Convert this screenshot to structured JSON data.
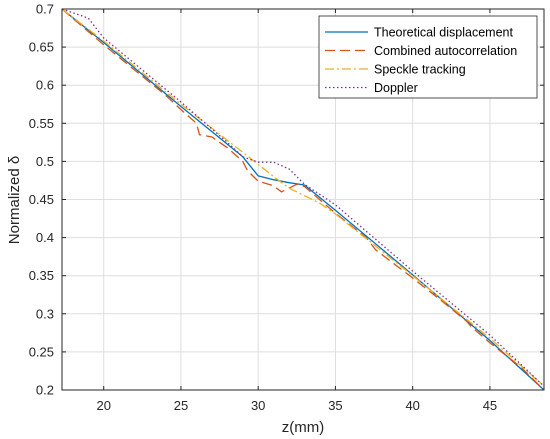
{
  "chart_data": {
    "type": "line",
    "title": "",
    "xlabel": "z(mm)",
    "ylabel": "Normalized δ",
    "xlim": [
      17.3,
      48.5
    ],
    "ylim": [
      0.2,
      0.7
    ],
    "xticks": [
      "20",
      "25",
      "30",
      "35",
      "40",
      "45"
    ],
    "yticks": [
      "0.2",
      "0.25",
      "0.3",
      "0.35",
      "0.4",
      "0.45",
      "0.5",
      "0.55",
      "0.6",
      "0.65",
      "0.7"
    ],
    "grid": true,
    "legend_position": "top-right",
    "series": [
      {
        "name": "Theoretical displacement",
        "color": "#0072BD",
        "style": "solid",
        "points": [
          [
            17.3,
            0.7
          ],
          [
            20,
            0.656
          ],
          [
            25,
            0.572
          ],
          [
            29,
            0.506
          ],
          [
            30,
            0.481
          ],
          [
            31,
            0.476
          ],
          [
            32,
            0.472
          ],
          [
            33,
            0.469
          ],
          [
            35,
            0.436
          ],
          [
            40,
            0.351
          ],
          [
            45,
            0.265
          ],
          [
            48.5,
            0.2
          ]
        ]
      },
      {
        "name": "Combined autocorrelation",
        "color": "#D95319",
        "style": "dashed",
        "points": [
          [
            17.3,
            0.7
          ],
          [
            20,
            0.653
          ],
          [
            22,
            0.62
          ],
          [
            24,
            0.587
          ],
          [
            25,
            0.568
          ],
          [
            26,
            0.55
          ],
          [
            26.2,
            0.535
          ],
          [
            27,
            0.532
          ],
          [
            28,
            0.518
          ],
          [
            29,
            0.5
          ],
          [
            29.3,
            0.488
          ],
          [
            30,
            0.474
          ],
          [
            31,
            0.468
          ],
          [
            31.5,
            0.46
          ],
          [
            32,
            0.465
          ],
          [
            32.5,
            0.47
          ],
          [
            33,
            0.467
          ],
          [
            35,
            0.432
          ],
          [
            37,
            0.4
          ],
          [
            37.6,
            0.384
          ],
          [
            40,
            0.347
          ],
          [
            42,
            0.315
          ],
          [
            43.5,
            0.29
          ],
          [
            43.8,
            0.283
          ],
          [
            45,
            0.262
          ],
          [
            47,
            0.23
          ],
          [
            48.5,
            0.2
          ]
        ]
      },
      {
        "name": "Speckle tracking",
        "color": "#EDB120",
        "style": "dashdot",
        "points": [
          [
            17.3,
            0.7
          ],
          [
            20,
            0.658
          ],
          [
            25,
            0.575
          ],
          [
            29,
            0.512
          ],
          [
            30,
            0.496
          ],
          [
            31,
            0.48
          ],
          [
            32,
            0.465
          ],
          [
            33,
            0.455
          ],
          [
            34,
            0.445
          ],
          [
            35,
            0.431
          ],
          [
            40,
            0.35
          ],
          [
            45,
            0.268
          ],
          [
            48.5,
            0.205
          ]
        ]
      },
      {
        "name": "Doppler",
        "color": "#7E2F8E",
        "style": "dotted",
        "points": [
          [
            17.3,
            0.7
          ],
          [
            19,
            0.688
          ],
          [
            20,
            0.662
          ],
          [
            25,
            0.578
          ],
          [
            28,
            0.525
          ],
          [
            29,
            0.506
          ],
          [
            30,
            0.499
          ],
          [
            31,
            0.499
          ],
          [
            32,
            0.49
          ],
          [
            33,
            0.47
          ],
          [
            35,
            0.443
          ],
          [
            40,
            0.356
          ],
          [
            45,
            0.272
          ],
          [
            48.5,
            0.205
          ]
        ]
      }
    ]
  }
}
